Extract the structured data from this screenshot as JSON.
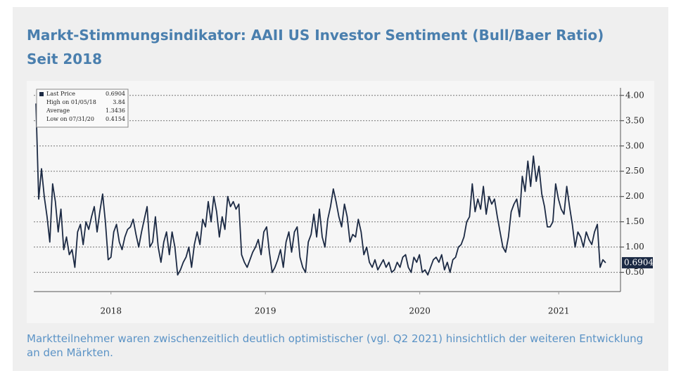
{
  "title": "Markt-Stimmungsindikator: AAII US Investor Sentiment (Bull/Baer Ratio)",
  "subtitle": "Seit 2018",
  "caption": "Marktteilnehmer waren zwischenzeitlich deutlich optimistischer (vgl. Q2 2021) hinsichtlich der weiteren Entwicklung an den Märkten.",
  "chart_data": {
    "type": "line",
    "color": "#1c2a44",
    "grid": true,
    "legend_box": [
      {
        "label": "Last Price",
        "value": "0.6904"
      },
      {
        "label": "High on 01/05/18",
        "value": "3.84"
      },
      {
        "label": "Average",
        "value": "1.3436"
      },
      {
        "label": "Low on 07/31/20",
        "value": "0.4154"
      }
    ],
    "last_price_label": "0.6904",
    "xlim": [
      2018,
      2021.8
    ],
    "xticks": [
      {
        "value": 2018.5,
        "label": "2018"
      },
      {
        "value": 2019.5,
        "label": "2019"
      },
      {
        "value": 2020.5,
        "label": "2020"
      },
      {
        "value": 2021.4,
        "label": "2021"
      }
    ],
    "ylim": [
      0.12,
      4.15
    ],
    "yticks": [
      {
        "value": 0.5,
        "label": "0.50"
      },
      {
        "value": 1,
        "label": "1.00"
      },
      {
        "value": 1.5,
        "label": "1.50"
      },
      {
        "value": 2,
        "label": "2.00"
      },
      {
        "value": 2.5,
        "label": "2.50"
      },
      {
        "value": 3,
        "label": "3.00"
      },
      {
        "value": 3.5,
        "label": "3.50"
      },
      {
        "value": 4,
        "label": "4.00"
      }
    ],
    "x": [
      2018.014,
      2018.032,
      2018.05,
      2018.068,
      2018.086,
      2018.104,
      2018.122,
      2018.14,
      2018.158,
      2018.176,
      2018.194,
      2018.212,
      2018.23,
      2018.248,
      2018.266,
      2018.284,
      2018.302,
      2018.32,
      2018.338,
      2018.356,
      2018.374,
      2018.392,
      2018.41,
      2018.428,
      2018.446,
      2018.464,
      2018.482,
      2018.5,
      2018.518,
      2018.536,
      2018.554,
      2018.572,
      2018.59,
      2018.608,
      2018.626,
      2018.644,
      2018.662,
      2018.68,
      2018.698,
      2018.716,
      2018.734,
      2018.752,
      2018.77,
      2018.788,
      2018.806,
      2018.824,
      2018.842,
      2018.86,
      2018.878,
      2018.896,
      2018.914,
      2018.932,
      2018.95,
      2018.968,
      2018.986,
      2019.004,
      2019.022,
      2019.04,
      2019.058,
      2019.076,
      2019.094,
      2019.112,
      2019.13,
      2019.148,
      2019.166,
      2019.184,
      2019.202,
      2019.22,
      2019.238,
      2019.256,
      2019.274,
      2019.292,
      2019.31,
      2019.328,
      2019.346,
      2019.364,
      2019.382,
      2019.4,
      2019.418,
      2019.436,
      2019.454,
      2019.472,
      2019.49,
      2019.508,
      2019.526,
      2019.544,
      2019.562,
      2019.58,
      2019.598,
      2019.616,
      2019.634,
      2019.652,
      2019.67,
      2019.688,
      2019.706,
      2019.724,
      2019.742,
      2019.76,
      2019.778,
      2019.796,
      2019.814,
      2019.832,
      2019.85,
      2019.868,
      2019.886,
      2019.904,
      2019.922,
      2019.94,
      2019.958,
      2019.976,
      2019.994,
      2020.012,
      2020.03,
      2020.048,
      2020.066,
      2020.084,
      2020.102,
      2020.12,
      2020.138,
      2020.156,
      2020.174,
      2020.192,
      2020.21,
      2020.228,
      2020.246,
      2020.264,
      2020.282,
      2020.3,
      2020.318,
      2020.336,
      2020.354,
      2020.372,
      2020.39,
      2020.408,
      2020.426,
      2020.444,
      2020.462,
      2020.48,
      2020.498,
      2020.516,
      2020.534,
      2020.552,
      2020.57,
      2020.588,
      2020.606,
      2020.624,
      2020.642,
      2020.66,
      2020.678,
      2020.696,
      2020.714,
      2020.732,
      2020.75,
      2020.768,
      2020.786,
      2020.804,
      2020.822,
      2020.84,
      2020.858,
      2020.876,
      2020.894,
      2020.912,
      2020.93,
      2020.948,
      2020.966,
      2020.984,
      2021.002,
      2021.02,
      2021.038,
      2021.056,
      2021.074,
      2021.092,
      2021.11,
      2021.128,
      2021.146,
      2021.164,
      2021.182,
      2021.2,
      2021.218,
      2021.236,
      2021.254,
      2021.272,
      2021.29,
      2021.308,
      2021.326,
      2021.344,
      2021.362,
      2021.38,
      2021.398,
      2021.416,
      2021.434,
      2021.452,
      2021.47,
      2021.488,
      2021.506,
      2021.524,
      2021.542,
      2021.56,
      2021.578,
      2021.596,
      2021.614,
      2021.632,
      2021.65,
      2021.668,
      2021.686,
      2021.704
    ],
    "values": [
      3.84,
      1.95,
      2.55,
      2.0,
      1.6,
      1.1,
      2.25,
      1.9,
      1.3,
      1.75,
      0.95,
      1.2,
      0.85,
      0.95,
      0.6,
      1.3,
      1.45,
      1.05,
      1.5,
      1.35,
      1.6,
      1.8,
      1.3,
      1.7,
      2.05,
      1.5,
      0.75,
      0.8,
      1.3,
      1.45,
      1.1,
      0.95,
      1.2,
      1.35,
      1.4,
      1.55,
      1.25,
      1.0,
      1.3,
      1.55,
      1.8,
      1.0,
      1.1,
      1.6,
      1.0,
      0.7,
      1.1,
      1.3,
      0.85,
      1.3,
      1.0,
      0.45,
      0.55,
      0.7,
      0.8,
      1.0,
      0.6,
      1.05,
      1.3,
      1.05,
      1.55,
      1.4,
      1.9,
      1.5,
      2.0,
      1.7,
      1.2,
      1.6,
      1.35,
      2.0,
      1.8,
      1.9,
      1.75,
      1.85,
      0.85,
      0.7,
      0.6,
      0.75,
      0.9,
      1.0,
      1.15,
      0.85,
      1.3,
      1.4,
      0.9,
      0.5,
      0.6,
      0.75,
      0.95,
      0.6,
      1.1,
      1.3,
      0.9,
      1.3,
      1.4,
      0.8,
      0.6,
      0.5,
      1.1,
      1.25,
      1.65,
      1.2,
      1.75,
      1.2,
      1.0,
      1.55,
      1.8,
      2.15,
      1.9,
      1.6,
      1.4,
      1.85,
      1.6,
      1.1,
      1.25,
      1.2,
      1.55,
      1.3,
      0.85,
      1.0,
      0.7,
      0.6,
      0.75,
      0.55,
      0.65,
      0.75,
      0.6,
      0.7,
      0.5,
      0.55,
      0.7,
      0.6,
      0.8,
      0.85,
      0.6,
      0.5,
      0.8,
      0.7,
      0.85,
      0.5,
      0.55,
      0.45,
      0.6,
      0.75,
      0.8,
      0.7,
      0.85,
      0.55,
      0.7,
      0.5,
      0.75,
      0.8,
      1.0,
      1.05,
      1.2,
      1.5,
      1.6,
      2.25,
      1.7,
      1.95,
      1.75,
      2.2,
      1.65,
      2.0,
      1.85,
      1.95,
      1.6,
      1.3,
      1.0,
      0.9,
      1.2,
      1.7,
      1.85,
      1.95,
      1.6,
      2.4,
      2.1,
      2.7,
      2.2,
      2.8,
      2.3,
      2.6,
      2.05,
      1.8,
      1.4,
      1.4,
      1.5,
      2.25,
      1.95,
      1.75,
      1.65,
      2.2,
      1.8,
      1.45,
      1.0,
      1.3,
      1.2,
      1.0,
      1.3,
      1.15,
      1.05,
      1.3,
      1.45,
      0.6,
      0.75,
      0.6904
    ]
  }
}
